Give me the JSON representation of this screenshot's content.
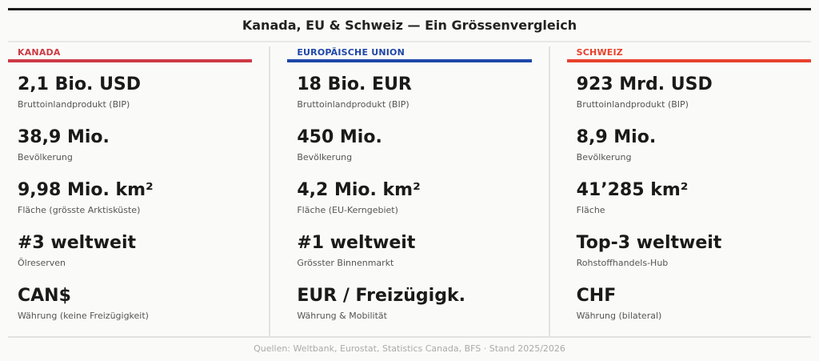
{
  "title": "Kanada, EU & Schweiz — Ein Grössenvergleich",
  "colors": {
    "kanada": "#cc3a45",
    "eu": "#1f47a8",
    "schweiz": "#e8412c"
  },
  "columns": [
    {
      "name": "KANADA",
      "rows": [
        {
          "value": "2,1 Bio. USD",
          "label": "Bruttoinlandprodukt (BIP)"
        },
        {
          "value": "38,9 Mio.",
          "label": "Bevölkerung"
        },
        {
          "value": "9,98 Mio. km²",
          "label": "Fläche (grösste Arktisküste)"
        },
        {
          "value": "#3 weltweit",
          "label": "Ölreserven"
        },
        {
          "value": "CAN$",
          "label": "Währung (keine Freizügigkeit)"
        }
      ]
    },
    {
      "name": "EUROPÄISCHE UNION",
      "rows": [
        {
          "value": "18 Bio. EUR",
          "label": "Bruttoinlandprodukt (BIP)"
        },
        {
          "value": "450 Mio.",
          "label": "Bevölkerung"
        },
        {
          "value": "4,2 Mio. km²",
          "label": "Fläche (EU-Kerngebiet)"
        },
        {
          "value": "#1 weltweit",
          "label": "Grösster Binnenmarkt"
        },
        {
          "value": "EUR / Freizügigk.",
          "label": "Währung & Mobilität"
        }
      ]
    },
    {
      "name": "SCHWEIZ",
      "rows": [
        {
          "value": "923 Mrd. USD",
          "label": "Bruttoinlandprodukt (BIP)"
        },
        {
          "value": "8,9 Mio.",
          "label": "Bevölkerung"
        },
        {
          "value": "41’285 km²",
          "label": "Fläche"
        },
        {
          "value": "Top-3 weltweit",
          "label": "Rohstoffhandels-Hub"
        },
        {
          "value": "CHF",
          "label": "Währung (bilateral)"
        }
      ]
    }
  ],
  "footer": "Quellen: Weltbank, Eurostat, Statistics Canada, BFS · Stand 2025/2026"
}
